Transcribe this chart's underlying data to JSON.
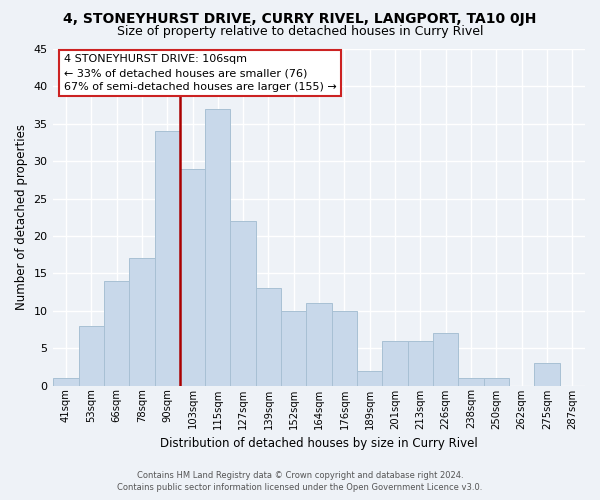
{
  "title": "4, STONEYHURST DRIVE, CURRY RIVEL, LANGPORT, TA10 0JH",
  "subtitle": "Size of property relative to detached houses in Curry Rivel",
  "xlabel": "Distribution of detached houses by size in Curry Rivel",
  "ylabel": "Number of detached properties",
  "bar_color": "#c8d8ea",
  "bar_edge_color": "#a8c0d4",
  "categories": [
    "41sqm",
    "53sqm",
    "66sqm",
    "78sqm",
    "90sqm",
    "103sqm",
    "115sqm",
    "127sqm",
    "139sqm",
    "152sqm",
    "164sqm",
    "176sqm",
    "189sqm",
    "201sqm",
    "213sqm",
    "226sqm",
    "238sqm",
    "250sqm",
    "262sqm",
    "275sqm",
    "287sqm"
  ],
  "values": [
    1,
    8,
    14,
    17,
    34,
    29,
    37,
    22,
    13,
    10,
    11,
    10,
    2,
    6,
    6,
    7,
    1,
    1,
    0,
    3,
    0
  ],
  "ylim": [
    0,
    45
  ],
  "yticks": [
    0,
    5,
    10,
    15,
    20,
    25,
    30,
    35,
    40,
    45
  ],
  "vline_idx": 5,
  "vline_color": "#aa0000",
  "annotation_title": "4 STONEYHURST DRIVE: 106sqm",
  "annotation_line1": "← 33% of detached houses are smaller (76)",
  "annotation_line2": "67% of semi-detached houses are larger (155) →",
  "footer1": "Contains HM Land Registry data © Crown copyright and database right 2024.",
  "footer2": "Contains public sector information licensed under the Open Government Licence v3.0.",
  "background_color": "#eef2f7",
  "grid_color": "#ffffff",
  "title_fontsize": 10,
  "subtitle_fontsize": 9
}
